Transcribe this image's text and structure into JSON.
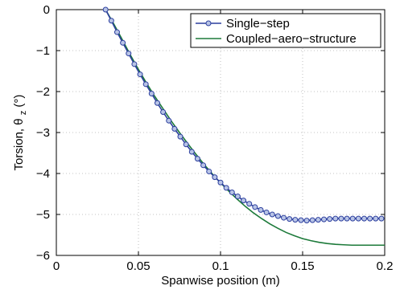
{
  "chart_data": {
    "type": "line",
    "title": "",
    "xlabel": "Spanwise position (m)",
    "ylabel": {
      "base": "Torsion, θ",
      "subscript": "z",
      "unit": " (°)"
    },
    "xlim": [
      0,
      0.2
    ],
    "ylim": [
      -6,
      0
    ],
    "xticks": [
      0,
      0.05,
      0.1,
      0.15,
      0.2
    ],
    "xtick_labels": [
      "0",
      "0.05",
      "0.1",
      "0.15",
      "0.2"
    ],
    "yticks": [
      0,
      -1,
      -2,
      -3,
      -4,
      -5,
      -6
    ],
    "ytick_labels": [
      "0",
      "−1",
      "−2",
      "−3",
      "−4",
      "−5",
      "−6"
    ],
    "grid": true,
    "legend_position": "top-right",
    "series": [
      {
        "name": "Single−step",
        "color": "#2c3f9e",
        "marker": "circle",
        "x": [
          0.03,
          0.0335,
          0.037,
          0.0405,
          0.044,
          0.0475,
          0.051,
          0.0545,
          0.058,
          0.0615,
          0.065,
          0.0685,
          0.072,
          0.0755,
          0.079,
          0.0825,
          0.086,
          0.0895,
          0.093,
          0.0965,
          0.1,
          0.1035,
          0.107,
          0.1105,
          0.114,
          0.1175,
          0.121,
          0.1245,
          0.128,
          0.1315,
          0.135,
          0.1385,
          0.142,
          0.1455,
          0.149,
          0.1525,
          0.156,
          0.1595,
          0.163,
          0.1665,
          0.17,
          0.1735,
          0.177,
          0.1805,
          0.184,
          0.1875,
          0.191,
          0.1945,
          0.198
        ],
        "y": [
          0.0,
          -0.27,
          -0.55,
          -0.81,
          -1.07,
          -1.33,
          -1.58,
          -1.82,
          -2.05,
          -2.28,
          -2.5,
          -2.71,
          -2.91,
          -3.1,
          -3.29,
          -3.47,
          -3.64,
          -3.8,
          -3.95,
          -4.09,
          -4.22,
          -4.35,
          -4.46,
          -4.56,
          -4.66,
          -4.74,
          -4.82,
          -4.89,
          -4.95,
          -5.0,
          -5.04,
          -5.08,
          -5.11,
          -5.13,
          -5.14,
          -5.15,
          -5.14,
          -5.13,
          -5.12,
          -5.11,
          -5.1,
          -5.1,
          -5.1,
          -5.1,
          -5.1,
          -5.1,
          -5.1,
          -5.1,
          -5.1
        ]
      },
      {
        "name": "Coupled−aero−structure",
        "color": "#1d7a3a",
        "marker": "none",
        "x": [
          0.03,
          0.035,
          0.04,
          0.045,
          0.05,
          0.055,
          0.06,
          0.065,
          0.07,
          0.075,
          0.08,
          0.085,
          0.09,
          0.095,
          0.1,
          0.105,
          0.11,
          0.115,
          0.12,
          0.125,
          0.13,
          0.135,
          0.14,
          0.145,
          0.15,
          0.155,
          0.16,
          0.165,
          0.17,
          0.175,
          0.18,
          0.185,
          0.19,
          0.195,
          0.2
        ],
        "y": [
          0.0,
          -0.35,
          -0.72,
          -1.1,
          -1.46,
          -1.8,
          -2.12,
          -2.42,
          -2.72,
          -3.0,
          -3.27,
          -3.53,
          -3.78,
          -4.01,
          -4.23,
          -4.43,
          -4.62,
          -4.8,
          -4.96,
          -5.1,
          -5.23,
          -5.34,
          -5.44,
          -5.52,
          -5.59,
          -5.64,
          -5.68,
          -5.71,
          -5.73,
          -5.74,
          -5.75,
          -5.75,
          -5.75,
          -5.75,
          -5.75
        ]
      }
    ]
  }
}
